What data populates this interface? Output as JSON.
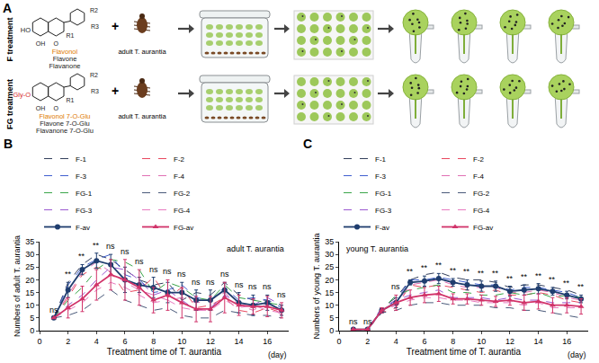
{
  "panel_a": {
    "letter": "A",
    "rows": [
      {
        "label": "F treatment",
        "hydroxyl": "HO",
        "compounds": [
          "Flavonol",
          "Flavone",
          "Flavanone"
        ]
      },
      {
        "label": "FG treatment",
        "hydroxyl": "Gly-O",
        "compounds": [
          "Flavonol 7-O-Glu",
          "Flavone 7-O-Glu",
          "Flavanone 7-O-Glu"
        ]
      }
    ],
    "structure_labels": [
      "OH",
      "O",
      "R1",
      "R2",
      "R3"
    ],
    "plus": "+",
    "insect": "adult T. aurantia"
  },
  "chart_data": [
    {
      "letter": "B",
      "type": "line",
      "x": [
        1,
        2,
        3,
        4,
        5,
        6,
        7,
        8,
        9,
        10,
        11,
        12,
        13,
        14,
        15,
        16,
        17
      ],
      "xlim": [
        0,
        17.5
      ],
      "xticks": [
        0,
        2,
        4,
        6,
        8,
        10,
        12,
        14,
        16
      ],
      "ylim": [
        0,
        35
      ],
      "yticks": [
        0,
        5,
        10,
        15,
        20,
        25,
        30,
        35
      ],
      "xlabel": "Treatment time of T. aurantia",
      "x_unit": "(day)",
      "ylabel": "Numbers of adult T. aurantia",
      "insect": "adult T. aurantia",
      "grid": false,
      "legend": "top",
      "series": [
        {
          "name": "F-1",
          "color": "#333f5c",
          "line_style": "dash",
          "values": [
            5,
            19,
            26,
            30,
            28,
            24,
            20,
            18,
            19,
            12,
            15,
            14,
            19,
            14,
            12,
            12,
            10
          ]
        },
        {
          "name": "F-2",
          "color": "#e8485f",
          "line_style": "dash",
          "values": [
            5,
            13,
            22,
            25,
            23,
            15,
            16,
            21,
            13,
            17,
            9,
            10,
            13,
            8,
            7,
            9,
            7
          ]
        },
        {
          "name": "F-3",
          "color": "#3f5fd0",
          "line_style": "dash",
          "values": [
            5,
            18,
            25,
            28,
            30,
            22,
            20,
            15,
            16,
            18,
            13,
            12,
            17,
            12,
            13,
            12,
            9
          ]
        },
        {
          "name": "F-4",
          "color": "#e06fb3",
          "line_style": "dash",
          "values": [
            5,
            14,
            23,
            27,
            23,
            19,
            16,
            14,
            12,
            13,
            11,
            12,
            15,
            10,
            8,
            11,
            6
          ]
        },
        {
          "name": "FG-1",
          "color": "#3aa64a",
          "line_style": "dash",
          "values": [
            5,
            12,
            17,
            24,
            28,
            27,
            24,
            15,
            19,
            17,
            13,
            12,
            18,
            13,
            12,
            11,
            10
          ]
        },
        {
          "name": "FG-2",
          "color": "#4a5a7a",
          "line_style": "dash",
          "values": [
            5,
            6,
            8,
            12,
            16,
            12,
            10,
            8,
            9,
            6,
            5,
            5,
            8,
            7,
            6,
            6,
            5
          ]
        },
        {
          "name": "FG-3",
          "color": "#9b59d0",
          "line_style": "dash",
          "values": [
            5,
            10,
            14,
            20,
            25,
            24,
            20,
            14,
            16,
            12,
            8,
            9,
            14,
            11,
            10,
            13,
            10
          ]
        },
        {
          "name": "FG-4",
          "color": "#e87ac0",
          "line_style": "dash",
          "values": [
            5,
            8,
            11,
            16,
            19,
            17,
            14,
            11,
            12,
            9,
            8,
            8,
            12,
            9,
            10,
            8,
            7
          ]
        },
        {
          "name": "F-av",
          "color": "#1f3d6e",
          "line_style": "solid",
          "marker": "circle",
          "values": [
            5,
            16,
            24,
            27.5,
            26,
            20,
            18,
            17,
            15,
            15,
            12,
            12,
            16,
            11,
            10,
            11,
            8
          ],
          "errors": [
            0,
            3,
            2,
            3,
            4,
            5,
            3,
            4,
            4,
            4,
            4,
            4,
            3,
            4,
            4,
            3,
            2
          ]
        },
        {
          "name": "FG-av",
          "color": "#d1336a",
          "line_style": "solid",
          "marker": "triangle",
          "values": [
            5,
            9,
            12.5,
            18,
            22,
            20,
            17,
            12,
            14,
            11,
            8.5,
            8.5,
            13,
            10,
            9.5,
            9.5,
            8
          ],
          "errors": [
            0,
            4,
            5,
            6,
            6,
            8,
            7,
            5,
            6,
            6,
            5,
            5,
            6,
            4,
            3,
            4,
            3
          ]
        }
      ],
      "annotations": [
        {
          "x": 1,
          "text": "ns"
        },
        {
          "x": 2,
          "text": "**"
        },
        {
          "x": 3,
          "text": "**"
        },
        {
          "x": 4,
          "text": "**"
        },
        {
          "x": 5,
          "text": "ns"
        },
        {
          "x": 6,
          "text": "ns"
        },
        {
          "x": 7,
          "text": "ns"
        },
        {
          "x": 8,
          "text": "ns"
        },
        {
          "x": 9,
          "text": "ns"
        },
        {
          "x": 10,
          "text": "ns"
        },
        {
          "x": 11,
          "text": "ns"
        },
        {
          "x": 12,
          "text": "ns"
        },
        {
          "x": 13,
          "text": "ns"
        },
        {
          "x": 14,
          "text": "ns"
        },
        {
          "x": 15,
          "text": "ns"
        },
        {
          "x": 16,
          "text": "ns"
        },
        {
          "x": 17,
          "text": "ns"
        }
      ]
    },
    {
      "letter": "C",
      "type": "line",
      "x": [
        1,
        2,
        3,
        4,
        5,
        6,
        7,
        8,
        9,
        10,
        11,
        12,
        13,
        14,
        15,
        16,
        17
      ],
      "xlim": [
        0,
        17.5
      ],
      "xticks": [
        0,
        2,
        4,
        6,
        8,
        10,
        12,
        14,
        16
      ],
      "ylim": [
        0,
        35
      ],
      "yticks": [
        0,
        5,
        10,
        15,
        20,
        25,
        30,
        35
      ],
      "xlabel": "Treatment time of T. aurantia",
      "x_unit": "(day)",
      "ylabel": "Numbers of young T. aurantia",
      "insect": "young T. aurantia",
      "grid": false,
      "legend": "top",
      "series": [
        {
          "name": "F-1",
          "color": "#333f5c",
          "line_style": "dash",
          "values": [
            0.5,
            0.5,
            9,
            13,
            20,
            22,
            23,
            21,
            20,
            20,
            19,
            17,
            18,
            18,
            17,
            16,
            14
          ]
        },
        {
          "name": "F-2",
          "color": "#e8485f",
          "line_style": "dash",
          "values": [
            0.5,
            0.5,
            7,
            9,
            18,
            17,
            18,
            17,
            16,
            15,
            16,
            14,
            14,
            15,
            14,
            12,
            11
          ]
        },
        {
          "name": "F-3",
          "color": "#3f5fd0",
          "line_style": "dash",
          "values": [
            0.5,
            0.5,
            8,
            12,
            20,
            20,
            21,
            20,
            19,
            18,
            18,
            16,
            17,
            17,
            16,
            15,
            13
          ]
        },
        {
          "name": "F-4",
          "color": "#e06fb3",
          "line_style": "dash",
          "values": [
            0.5,
            0.5,
            8,
            10,
            18,
            19,
            20,
            18,
            17,
            17,
            17,
            15,
            15,
            16,
            15,
            13,
            12
          ]
        },
        {
          "name": "FG-1",
          "color": "#3aa64a",
          "line_style": "dash",
          "values": [
            0.5,
            0.5,
            8,
            14,
            16,
            17,
            18,
            15,
            15,
            14,
            14,
            15,
            14,
            15,
            13,
            14,
            13
          ]
        },
        {
          "name": "FG-2",
          "color": "#4a5a7a",
          "line_style": "dash",
          "values": [
            0.5,
            0.5,
            7,
            8,
            10,
            11,
            11,
            10,
            10,
            10,
            9,
            9,
            8,
            8,
            7,
            6,
            5
          ]
        },
        {
          "name": "FG-3",
          "color": "#9b59d0",
          "line_style": "dash",
          "values": [
            0.5,
            0.5,
            9,
            12,
            14,
            15,
            16,
            13,
            13,
            13,
            12,
            13,
            12,
            12,
            11,
            11,
            11
          ]
        },
        {
          "name": "FG-4",
          "color": "#e87ac0",
          "line_style": "dash",
          "values": [
            0.5,
            0.5,
            8,
            10,
            12,
            13,
            13,
            12,
            12,
            11,
            11,
            11,
            10,
            11,
            9,
            9,
            9
          ]
        },
        {
          "name": "F-av",
          "color": "#1f3d6e",
          "line_style": "solid",
          "marker": "circle",
          "values": [
            0.5,
            0.5,
            8,
            11,
            19,
            19.5,
            20.5,
            19,
            18,
            17.5,
            17.5,
            15.5,
            16,
            16.5,
            15.5,
            14,
            12.5
          ],
          "errors": [
            0,
            0,
            1,
            2,
            1,
            2,
            2,
            1.5,
            2,
            2,
            2,
            2,
            2,
            2,
            1.5,
            1.5,
            1.5
          ]
        },
        {
          "name": "FG-av",
          "color": "#d1336a",
          "line_style": "solid",
          "marker": "triangle",
          "values": [
            0.5,
            0.5,
            8,
            11,
            13,
            14,
            14.5,
            12.5,
            12.5,
            12,
            11.5,
            12,
            11,
            11.5,
            10,
            10,
            9.5
          ],
          "errors": [
            0,
            0,
            1,
            3,
            3,
            3,
            3,
            2,
            2,
            2,
            2,
            2,
            3,
            3,
            3,
            3,
            3
          ]
        }
      ],
      "annotations": [
        {
          "x": 1,
          "text": "ns"
        },
        {
          "x": 2,
          "text": "ns"
        },
        {
          "x": 4,
          "text": "ns"
        },
        {
          "x": 5,
          "text": "**"
        },
        {
          "x": 6,
          "text": "**"
        },
        {
          "x": 7,
          "text": "**"
        },
        {
          "x": 8,
          "text": "**"
        },
        {
          "x": 9,
          "text": "**"
        },
        {
          "x": 10,
          "text": "**"
        },
        {
          "x": 11,
          "text": "**"
        },
        {
          "x": 12,
          "text": "**"
        },
        {
          "x": 13,
          "text": "**"
        },
        {
          "x": 14,
          "text": "**"
        },
        {
          "x": 15,
          "text": "**"
        },
        {
          "x": 16,
          "text": "**"
        },
        {
          "x": 17,
          "text": "**"
        }
      ]
    }
  ]
}
